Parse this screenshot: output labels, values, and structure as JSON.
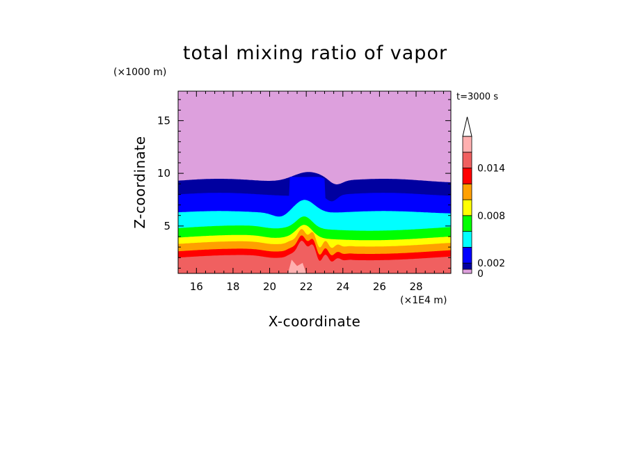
{
  "chart_data": {
    "type": "contour",
    "title": "total mixing ratio of vapor",
    "xlabel": "X-coordinate",
    "ylabel": "Z-coordinate",
    "x_unit": "(×1E4 m)",
    "y_unit": "(×1000 m)",
    "time_label": "t=3000 s",
    "xlim": [
      15,
      29.9
    ],
    "ylim": [
      0.5,
      17.8
    ],
    "x_ticks": [
      16,
      18,
      20,
      22,
      24,
      26,
      28
    ],
    "y_ticks": [
      5,
      10,
      15
    ],
    "colorbar": {
      "levels": [
        0,
        0.001,
        0.002,
        0.004,
        0.006,
        0.008,
        0.01,
        0.012,
        0.014,
        0.016
      ],
      "tick_labels": [
        {
          "value": 0,
          "text": "0"
        },
        {
          "value": 0.002,
          "text": "0.002"
        },
        {
          "value": 0.008,
          "text": "0.008"
        },
        {
          "value": 0.014,
          "text": "0.014"
        }
      ],
      "colors": [
        "#dda0dd",
        "#0000a0",
        "#0000ff",
        "#00ffff",
        "#00ff00",
        "#ffff00",
        "#ffa000",
        "#ff0000",
        "#f06060",
        "#ffb0b0"
      ],
      "extend": "max"
    },
    "isolines": [
      {
        "level": 0.001,
        "z_base": 9.3
      },
      {
        "level": 0.002,
        "z_base": 8.0
      },
      {
        "level": 0.004,
        "z_base": 6.3
      },
      {
        "level": 0.006,
        "z_base": 4.8
      },
      {
        "level": 0.008,
        "z_base": 3.9
      },
      {
        "level": 0.01,
        "z_base": 3.3
      },
      {
        "level": 0.012,
        "z_base": 2.6
      },
      {
        "level": 0.014,
        "z_base": 2.0
      }
    ]
  }
}
